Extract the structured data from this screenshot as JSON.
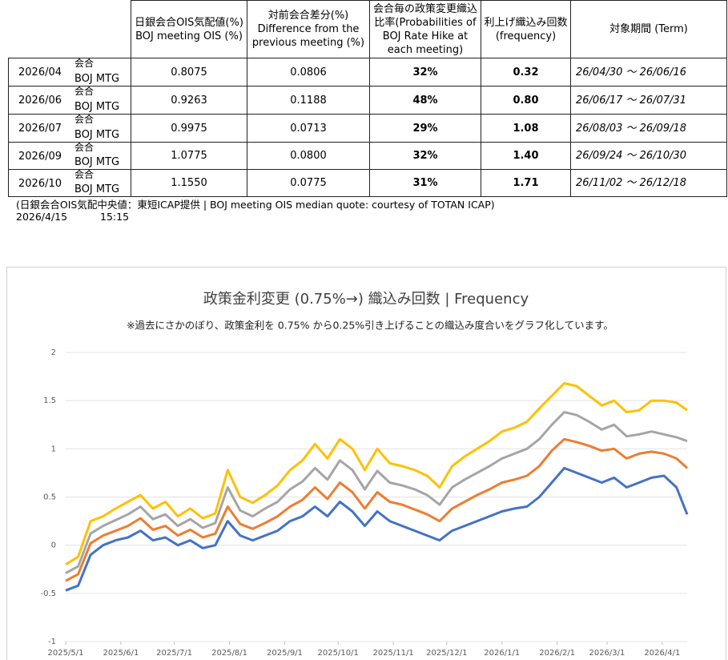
{
  "table": {
    "headers": [
      [
        "日銀会合OIS気配値(%)",
        "BOJ meeting OIS (%)"
      ],
      [
        "対前会合差分(%)",
        "Difference from the",
        "previous meeting (%)"
      ],
      [
        "会合毎の政策変更織込",
        "比率(Probabilities of",
        "BOJ Rate Hike at",
        "each meeting)"
      ],
      [
        "利上げ織込み回数",
        "(frequency)"
      ],
      [
        "対象期間 (Term)"
      ]
    ],
    "rows": [
      [
        "2026/04",
        "会合",
        "BOJ MTG",
        "0.8075",
        "0.0806",
        "32%",
        "0.32",
        "26/04/30 ～ 26/06/16"
      ],
      [
        "2026/06",
        "会合",
        "BOJ MTG",
        "0.9263",
        "0.1188",
        "48%",
        "0.80",
        "26/06/17 ～ 26/07/31"
      ],
      [
        "2026/07",
        "会合",
        "BOJ MTG",
        "0.9975",
        "0.0713",
        "29%",
        "1.08",
        "26/08/03 ～ 26/09/18"
      ],
      [
        "2026/09",
        "会合",
        "BOJ MTG",
        "1.0775",
        "0.0800",
        "32%",
        "1.40",
        "26/09/24 ～ 26/10/30"
      ],
      [
        "2026/10",
        "会合",
        "BOJ MTG",
        "1.1550",
        "0.0775",
        "31%",
        "1.71",
        "26/11/02 ～ 26/12/18"
      ]
    ],
    "note": "(日銀会合OIS気配中央値：東短ICAP提供 | BOJ meeting OIS median quote: courtesy of TOTAN ICAP)",
    "date": "2026/4/15",
    "time": "15:15"
  },
  "chart_data": {
    "type": "line",
    "title": "政策金利変更 (0.75%→) 織込み回数 | Frequency",
    "subtitle": "※過去にさかのぼり、政策金利を 0.75% から0.25%引き上げることの織込み度合いをグラフ化しています。",
    "x": [
      "2025/5/1",
      "2025/5/8",
      "2025/5/15",
      "2025/5/22",
      "2025/5/29",
      "2025/6/5",
      "2025/6/12",
      "2025/6/19",
      "2025/6/26",
      "2025/7/3",
      "2025/7/10",
      "2025/7/17",
      "2025/7/24",
      "2025/7/31",
      "2025/8/7",
      "2025/8/14",
      "2025/8/21",
      "2025/8/28",
      "2025/9/4",
      "2025/9/11",
      "2025/9/18",
      "2025/9/25",
      "2025/10/2",
      "2025/10/9",
      "2025/10/16",
      "2025/10/23",
      "2025/10/30",
      "2025/11/6",
      "2025/11/13",
      "2025/11/20",
      "2025/11/27",
      "2025/12/4",
      "2025/12/11",
      "2025/12/18",
      "2025/12/25",
      "2026/1/1",
      "2026/1/8",
      "2026/1/15",
      "2026/1/22",
      "2026/1/29",
      "2026/2/5",
      "2026/2/12",
      "2026/2/19",
      "2026/2/26",
      "2026/3/5",
      "2026/3/12",
      "2026/3/19",
      "2026/3/26",
      "2026/4/2",
      "2026/4/9",
      "2026/4/15"
    ],
    "series": [
      {
        "color": "#4472c4",
        "values": [
          -0.47,
          -0.42,
          -0.1,
          0.0,
          0.05,
          0.08,
          0.15,
          0.05,
          0.08,
          0.0,
          0.05,
          -0.03,
          0.0,
          0.25,
          0.1,
          0.05,
          0.1,
          0.15,
          0.25,
          0.3,
          0.4,
          0.3,
          0.45,
          0.35,
          0.2,
          0.35,
          0.25,
          0.2,
          0.15,
          0.1,
          0.05,
          0.15,
          0.2,
          0.25,
          0.3,
          0.35,
          0.38,
          0.4,
          0.5,
          0.65,
          0.8,
          0.75,
          0.7,
          0.65,
          0.7,
          0.6,
          0.65,
          0.7,
          0.72,
          0.6,
          0.32
        ]
      },
      {
        "color": "#ed7d31",
        "values": [
          -0.37,
          -0.3,
          0.02,
          0.1,
          0.15,
          0.2,
          0.28,
          0.16,
          0.2,
          0.1,
          0.16,
          0.08,
          0.12,
          0.4,
          0.22,
          0.17,
          0.23,
          0.3,
          0.4,
          0.47,
          0.6,
          0.48,
          0.65,
          0.55,
          0.38,
          0.55,
          0.45,
          0.42,
          0.37,
          0.32,
          0.25,
          0.38,
          0.45,
          0.52,
          0.58,
          0.65,
          0.68,
          0.72,
          0.82,
          0.98,
          1.1,
          1.07,
          1.03,
          0.98,
          1.0,
          0.9,
          0.95,
          0.97,
          0.95,
          0.9,
          0.8
        ]
      },
      {
        "color": "#a5a5a5",
        "values": [
          -0.29,
          -0.22,
          0.12,
          0.2,
          0.26,
          0.32,
          0.4,
          0.27,
          0.32,
          0.2,
          0.27,
          0.18,
          0.23,
          0.6,
          0.36,
          0.3,
          0.38,
          0.45,
          0.58,
          0.66,
          0.8,
          0.68,
          0.88,
          0.78,
          0.58,
          0.77,
          0.65,
          0.62,
          0.58,
          0.52,
          0.42,
          0.6,
          0.68,
          0.75,
          0.82,
          0.9,
          0.95,
          1.0,
          1.1,
          1.25,
          1.38,
          1.35,
          1.28,
          1.2,
          1.25,
          1.13,
          1.15,
          1.18,
          1.15,
          1.12,
          1.08
        ]
      },
      {
        "color": "#ffc000",
        "values": [
          -0.2,
          -0.12,
          0.25,
          0.3,
          0.38,
          0.45,
          0.52,
          0.38,
          0.45,
          0.3,
          0.38,
          0.28,
          0.33,
          0.78,
          0.5,
          0.44,
          0.52,
          0.62,
          0.78,
          0.88,
          1.05,
          0.9,
          1.1,
          1.0,
          0.78,
          1.0,
          0.85,
          0.82,
          0.78,
          0.72,
          0.6,
          0.82,
          0.92,
          1.0,
          1.08,
          1.18,
          1.22,
          1.28,
          1.42,
          1.55,
          1.68,
          1.65,
          1.55,
          1.45,
          1.5,
          1.38,
          1.4,
          1.5,
          1.5,
          1.48,
          1.4
        ]
      }
    ],
    "xlim": [
      "2025/5/1",
      "2026/4/15"
    ],
    "xticks": [
      "2025/5/1",
      "2025/6/1",
      "2025/7/1",
      "2025/8/1",
      "2025/9/1",
      "2025/10/1",
      "2025/11/1",
      "2025/12/1",
      "2026/1/1",
      "2026/2/1",
      "2026/3/1",
      "2026/4/1"
    ],
    "ylim": [
      -1,
      2
    ],
    "yticks": [
      2,
      1.5,
      1,
      0.5,
      0,
      -0.5,
      -1
    ],
    "grid": true
  }
}
